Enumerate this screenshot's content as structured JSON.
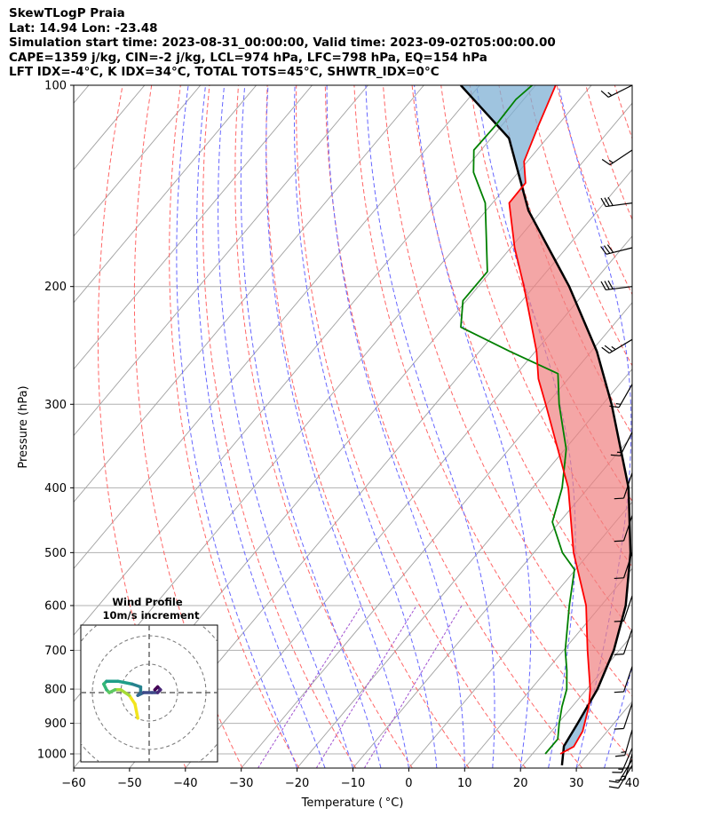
{
  "header": {
    "line1": "SkewTLogP Praia",
    "line2": "Lat: 14.94    Lon: -23.48",
    "line3": "Simulation start time: 2023-08-31_00:00:00, Valid time: 2023-09-02T05:00:00.00",
    "line4": "CAPE=1359 j/kg, CIN=-2 j/kg, LCL=974 hPa, LFC=798 hPa, EQ=154 hPa",
    "line5": "LFT IDX=-4°C, K IDX=34°C, TOTAL TOTS=45°C, SHWTR_IDX=0°C"
  },
  "chart_data": {
    "type": "skewt",
    "title": "SkewTLogP Praia",
    "xlabel": "Temperature ( °C)",
    "ylabel": "Pressure (hPa)",
    "xlim": [
      -60,
      40
    ],
    "ylim": [
      1050,
      100
    ],
    "xticks": [
      -60,
      -50,
      -40,
      -30,
      -20,
      -10,
      0,
      10,
      20,
      30,
      40
    ],
    "yticks": [
      100,
      200,
      300,
      400,
      500,
      600,
      700,
      800,
      900,
      1000
    ],
    "grid": true,
    "temperature": [
      {
        "p": 1000,
        "t": 25.0
      },
      {
        "p": 975,
        "t": 26.3
      },
      {
        "p": 925,
        "t": 25.6
      },
      {
        "p": 850,
        "t": 23.0
      },
      {
        "p": 800,
        "t": 20.6
      },
      {
        "p": 700,
        "t": 14.3
      },
      {
        "p": 600,
        "t": 7.3
      },
      {
        "p": 500,
        "t": -2.9
      },
      {
        "p": 400,
        "t": -13.6
      },
      {
        "p": 300,
        "t": -30.2
      },
      {
        "p": 275,
        "t": -35.3
      },
      {
        "p": 250,
        "t": -39.8
      },
      {
        "p": 200,
        "t": -51.8
      },
      {
        "p": 175,
        "t": -59.3
      },
      {
        "p": 150,
        "t": -67.0
      },
      {
        "p": 140,
        "t": -67.1
      },
      {
        "p": 130,
        "t": -70.6
      },
      {
        "p": 115,
        "t": -73.4
      },
      {
        "p": 100,
        "t": -76.4
      }
    ],
    "dewpoint": [
      {
        "p": 1000,
        "t": 22.3
      },
      {
        "p": 950,
        "t": 22.3
      },
      {
        "p": 900,
        "t": 20.2
      },
      {
        "p": 850,
        "t": 18.2
      },
      {
        "p": 800,
        "t": 16.4
      },
      {
        "p": 750,
        "t": 13.6
      },
      {
        "p": 700,
        "t": 10.3
      },
      {
        "p": 600,
        "t": 4.3
      },
      {
        "p": 530,
        "t": -0.2
      },
      {
        "p": 500,
        "t": -4.9
      },
      {
        "p": 450,
        "t": -11.3
      },
      {
        "p": 400,
        "t": -14.7
      },
      {
        "p": 350,
        "t": -19.8
      },
      {
        "p": 300,
        "t": -27.8
      },
      {
        "p": 270,
        "t": -32.6
      },
      {
        "p": 250,
        "t": -44.6
      },
      {
        "p": 230,
        "t": -57.0
      },
      {
        "p": 210,
        "t": -60.6
      },
      {
        "p": 190,
        "t": -60.6
      },
      {
        "p": 150,
        "t": -71.3
      },
      {
        "p": 135,
        "t": -78.0
      },
      {
        "p": 125,
        "t": -81.3
      },
      {
        "p": 115,
        "t": -81.1
      },
      {
        "p": 105,
        "t": -81.4
      },
      {
        "p": 100,
        "t": -80.6
      }
    ],
    "parcel": [
      {
        "p": 1040,
        "t": 27.0
      },
      {
        "p": 1000,
        "t": 25.5
      },
      {
        "p": 974,
        "t": 24.5
      },
      {
        "p": 900,
        "t": 23.5
      },
      {
        "p": 800,
        "t": 21.9
      },
      {
        "p": 700,
        "t": 19.0
      },
      {
        "p": 600,
        "t": 14.4
      },
      {
        "p": 500,
        "t": 7.3
      },
      {
        "p": 400,
        "t": -2.8
      },
      {
        "p": 300,
        "t": -18.4
      },
      {
        "p": 250,
        "t": -29.0
      },
      {
        "p": 200,
        "t": -43.7
      },
      {
        "p": 154,
        "t": -62.4
      },
      {
        "p": 120,
        "t": -76.8
      },
      {
        "p": 100,
        "t": -93.4
      }
    ],
    "cape_shading_color": "#f08080",
    "cin_shading_color": "#7fb0d4",
    "temperature_color": "#ff0000",
    "dewpoint_color": "#008000",
    "parcel_color": "#000000",
    "dry_adiabat_color": "#ff6666",
    "moist_adiabat_color": "#6666ff",
    "mixing_ratio_color": "#a050d0",
    "isotherm_color": "#a0a0a0",
    "wind_barbs": [
      {
        "p": 100,
        "u": 6,
        "v": 3
      },
      {
        "p": 125,
        "u": 6,
        "v": 4
      },
      {
        "p": 150,
        "u": 15,
        "v": 2
      },
      {
        "p": 175,
        "u": 16,
        "v": 4
      },
      {
        "p": 200,
        "u": 16,
        "v": 2
      },
      {
        "p": 240,
        "u": 10,
        "v": 6
      },
      {
        "p": 280,
        "u": 4,
        "v": 7
      },
      {
        "p": 330,
        "u": 3,
        "v": 6
      },
      {
        "p": 380,
        "u": 2,
        "v": 6
      },
      {
        "p": 440,
        "u": 2,
        "v": 6
      },
      {
        "p": 500,
        "u": 2,
        "v": 6
      },
      {
        "p": 580,
        "u": 2,
        "v": 6
      },
      {
        "p": 650,
        "u": 2,
        "v": 6
      },
      {
        "p": 740,
        "u": 2,
        "v": 6
      },
      {
        "p": 840,
        "u": 2,
        "v": 6
      },
      {
        "p": 920,
        "u": 2,
        "v": 7
      },
      {
        "p": 980,
        "u": 3,
        "v": 7
      },
      {
        "p": 1000,
        "u": 2,
        "v": 7
      },
      {
        "p": 1020,
        "u": 3,
        "v": 5
      },
      {
        "p": 1040,
        "u": 3,
        "v": 5
      }
    ],
    "hodograph": {
      "title_line1": "Wind Profile",
      "title_line2": "10m/s increment",
      "ring_step_ms": 10,
      "rings": 3,
      "points": [
        {
          "u": -4,
          "v": -9
        },
        {
          "u": -5,
          "v": -4
        },
        {
          "u": -7,
          "v": -1
        },
        {
          "u": -10,
          "v": 1
        },
        {
          "u": -12,
          "v": 1
        },
        {
          "u": -14,
          "v": 0
        },
        {
          "u": -15,
          "v": 1
        },
        {
          "u": -16,
          "v": 3
        },
        {
          "u": -15,
          "v": 4
        },
        {
          "u": -11,
          "v": 4
        },
        {
          "u": -6,
          "v": 3
        },
        {
          "u": -3,
          "v": 2
        },
        {
          "u": -3,
          "v": 0
        },
        {
          "u": -4,
          "v": -1
        },
        {
          "u": -2,
          "v": 0
        },
        {
          "u": 1,
          "v": 0
        },
        {
          "u": 3,
          "v": 0
        },
        {
          "u": 4,
          "v": 1
        },
        {
          "u": 3,
          "v": 2
        },
        {
          "u": 2,
          "v": 1
        },
        {
          "u": 3,
          "v": 2
        }
      ]
    }
  }
}
